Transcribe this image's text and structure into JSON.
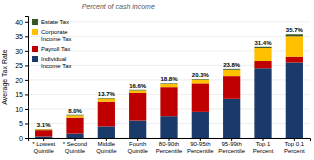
{
  "chart_data": {
    "type": "bar",
    "stacked": true,
    "title": "Percent of cash income",
    "ylabel": "Average Tax Rate",
    "categories": [
      "* Lowest\nQuintile",
      "* Second\nQuintile",
      "Middle\nQuintile",
      "Fourth\nQuintile",
      "80-90th\nPercentile",
      "90-95th\nPercentile",
      "95-99th\nPercentile",
      "Top 1\nPercent",
      "Top 0.1\nPercent"
    ],
    "series": [
      {
        "name": "Individual\nIncome Tax",
        "color": "#1a3a6b",
        "values": [
          0.5,
          1.5,
          4.0,
          6.0,
          7.5,
          9.0,
          13.5,
          24.0,
          26.0
        ]
      },
      {
        "name": "Payroll Tax",
        "color": "#c00000",
        "values": [
          2.2,
          5.5,
          8.5,
          9.5,
          10.0,
          9.8,
          7.8,
          2.5,
          2.0
        ]
      },
      {
        "name": "Corporate\nIncome Tax",
        "color": "#ffc000",
        "values": [
          0.3,
          0.8,
          1.0,
          0.9,
          1.1,
          1.3,
          2.2,
          4.5,
          7.0
        ]
      },
      {
        "name": "Estate Tax",
        "color": "#375623",
        "values": [
          0.1,
          0.2,
          0.2,
          0.2,
          0.2,
          0.2,
          0.3,
          0.4,
          0.7
        ]
      }
    ],
    "totals": [
      3.1,
      8.0,
      13.7,
      16.6,
      18.8,
      20.3,
      23.8,
      31.4,
      35.7
    ],
    "total_labels": [
      "3.1%",
      "8.0%",
      "13.7%",
      "16.6%",
      "18.8%",
      "20.3%",
      "23.8%",
      "31.4%",
      "35.7%"
    ],
    "ylim": [
      0,
      42
    ],
    "yticks": [
      0,
      5,
      10,
      15,
      20,
      25,
      30,
      35,
      40
    ],
    "grid": true,
    "legend": "upper-left"
  }
}
